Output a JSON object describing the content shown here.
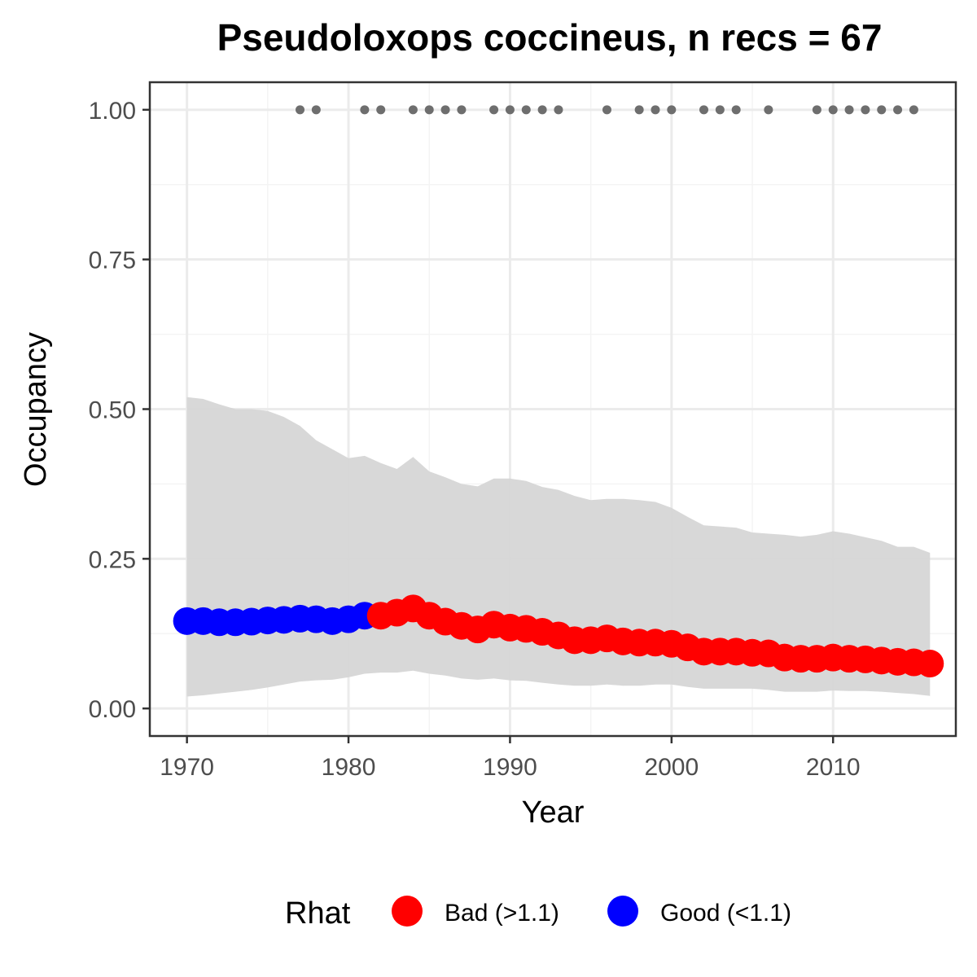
{
  "chart_data": {
    "type": "line",
    "title": "Pseudoloxops coccineus, n recs = 67",
    "xlabel": "Year",
    "ylabel": "Occupancy",
    "xlim": [
      1967.7,
      2017.6
    ],
    "ylim": [
      -0.046,
      1.046
    ],
    "x_ticks": [
      1970,
      1980,
      1990,
      2000,
      2010
    ],
    "x_tick_labels": [
      "1970",
      "1980",
      "1990",
      "2000",
      "2010"
    ],
    "y_ticks": [
      0,
      0.25,
      0.5,
      0.75,
      1.0
    ],
    "y_tick_labels": [
      "0.00",
      "0.25",
      "0.50",
      "0.75",
      "1.00"
    ],
    "grid": true,
    "colors": {
      "bad": "#ff0000",
      "good": "#0000ff",
      "ribbon": "#d6d6d6",
      "record_points": "#6e6e6e",
      "panel_border": "#333333",
      "grid_major": "#ebebeb",
      "grid_minor": "#f4f4f4"
    },
    "series": [
      {
        "name": "Occupancy",
        "x": [
          1970,
          1971,
          1972,
          1973,
          1974,
          1975,
          1976,
          1977,
          1978,
          1979,
          1980,
          1981,
          1982,
          1983,
          1984,
          1985,
          1986,
          1987,
          1988,
          1989,
          1990,
          1991,
          1992,
          1993,
          1994,
          1995,
          1996,
          1997,
          1998,
          1999,
          2000,
          2001,
          2002,
          2003,
          2004,
          2005,
          2006,
          2007,
          2008,
          2009,
          2010,
          2011,
          2012,
          2013,
          2014,
          2015,
          2016
        ],
        "y": [
          0.146,
          0.146,
          0.144,
          0.144,
          0.145,
          0.147,
          0.148,
          0.15,
          0.149,
          0.146,
          0.149,
          0.155,
          0.155,
          0.16,
          0.167,
          0.155,
          0.145,
          0.138,
          0.132,
          0.14,
          0.135,
          0.133,
          0.128,
          0.122,
          0.114,
          0.114,
          0.117,
          0.112,
          0.11,
          0.11,
          0.108,
          0.102,
          0.095,
          0.095,
          0.095,
          0.093,
          0.092,
          0.085,
          0.083,
          0.083,
          0.085,
          0.083,
          0.082,
          0.08,
          0.078,
          0.077,
          0.075
        ],
        "rhat": [
          "Good",
          "Good",
          "Good",
          "Good",
          "Good",
          "Good",
          "Good",
          "Good",
          "Good",
          "Good",
          "Good",
          "Good",
          "Bad",
          "Bad",
          "Bad",
          "Bad",
          "Bad",
          "Bad",
          "Bad",
          "Bad",
          "Bad",
          "Bad",
          "Bad",
          "Bad",
          "Bad",
          "Bad",
          "Bad",
          "Bad",
          "Bad",
          "Bad",
          "Bad",
          "Bad",
          "Bad",
          "Bad",
          "Bad",
          "Bad",
          "Bad",
          "Bad",
          "Bad",
          "Bad",
          "Bad",
          "Bad",
          "Bad",
          "Bad",
          "Bad",
          "Bad",
          "Bad"
        ],
        "lower": [
          0.02,
          0.022,
          0.025,
          0.028,
          0.031,
          0.035,
          0.04,
          0.045,
          0.047,
          0.048,
          0.052,
          0.058,
          0.06,
          0.06,
          0.063,
          0.058,
          0.055,
          0.05,
          0.048,
          0.05,
          0.047,
          0.046,
          0.043,
          0.04,
          0.038,
          0.038,
          0.04,
          0.038,
          0.038,
          0.04,
          0.04,
          0.036,
          0.033,
          0.033,
          0.033,
          0.033,
          0.031,
          0.028,
          0.028,
          0.028,
          0.03,
          0.029,
          0.029,
          0.028,
          0.026,
          0.024,
          0.021
        ],
        "upper": [
          0.52,
          0.517,
          0.508,
          0.5,
          0.5,
          0.497,
          0.487,
          0.472,
          0.448,
          0.433,
          0.418,
          0.422,
          0.41,
          0.4,
          0.42,
          0.396,
          0.386,
          0.375,
          0.371,
          0.384,
          0.384,
          0.38,
          0.37,
          0.365,
          0.355,
          0.348,
          0.35,
          0.35,
          0.348,
          0.345,
          0.335,
          0.32,
          0.306,
          0.304,
          0.302,
          0.294,
          0.292,
          0.29,
          0.287,
          0.29,
          0.296,
          0.292,
          0.286,
          0.28,
          0.27,
          0.27,
          0.26
        ]
      }
    ],
    "records": {
      "years": [
        1977,
        1978,
        1981,
        1982,
        1984,
        1985,
        1986,
        1987,
        1989,
        1990,
        1991,
        1992,
        1993,
        1996,
        1998,
        1999,
        2000,
        2002,
        2003,
        2004,
        2006,
        2009,
        2010,
        2011,
        2012,
        2013,
        2014,
        2015
      ],
      "y": 1.0
    },
    "legend": {
      "title": "Rhat",
      "placement": "bottom",
      "items": [
        {
          "label": "Bad (>1.1)",
          "color": "#ff0000"
        },
        {
          "label": "Good (<1.1)",
          "color": "#0000ff"
        }
      ]
    }
  }
}
